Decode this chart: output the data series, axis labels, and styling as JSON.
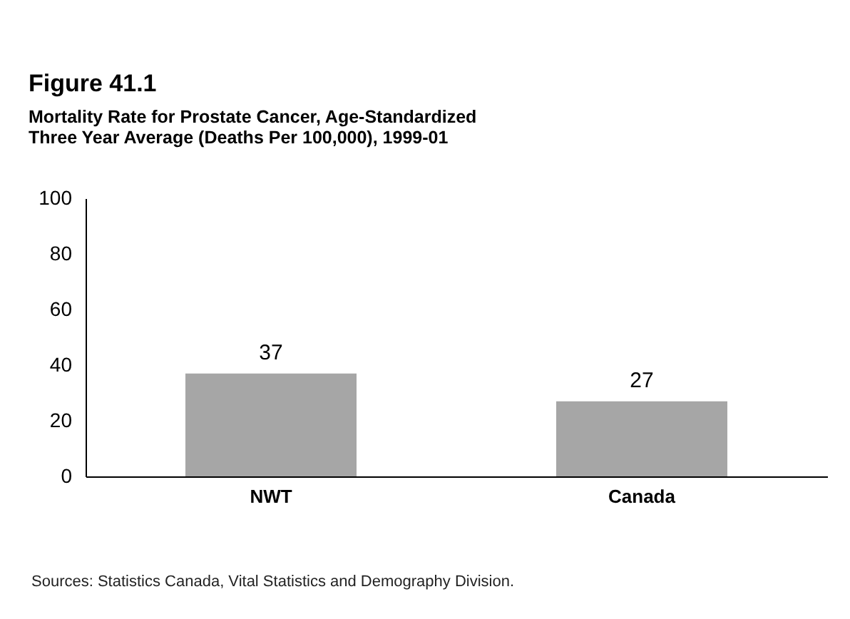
{
  "chart_data": {
    "type": "bar",
    "title": "Figure 41.1",
    "subtitle": "Mortality Rate for Prostate Cancer, Age-Standardized\nThree Year Average (Deaths Per 100,000), 1999-01",
    "categories": [
      "NWT",
      "Canada"
    ],
    "values": [
      37,
      27
    ],
    "color": "#a6a6a6",
    "ylim": [
      0,
      100
    ],
    "yticks": [
      0,
      20,
      40,
      60,
      80,
      100
    ],
    "grid": false,
    "data_labels": true,
    "annotations": [
      "Sources: Statistics Canada, Vital Statistics and Demography Division."
    ]
  }
}
